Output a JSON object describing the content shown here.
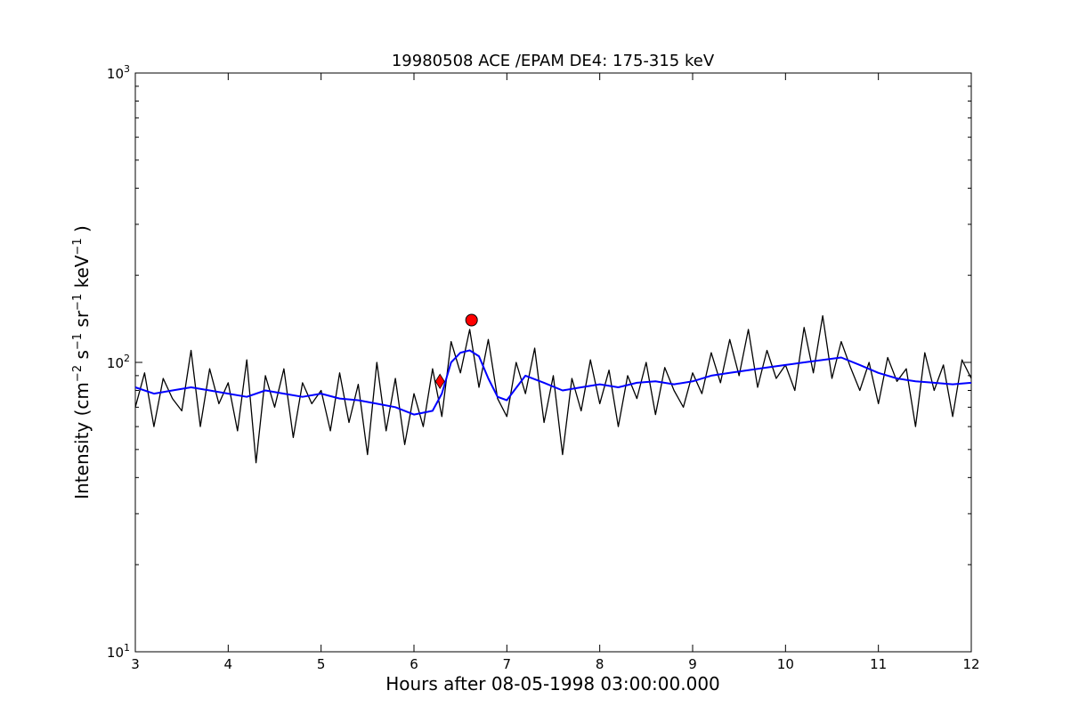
{
  "chart_data": {
    "type": "line",
    "title": "19980508 ACE /EPAM DE4: 175-315 keV",
    "xlabel": "Hours after 08-05-1998 03:00:00.000",
    "ylabel_parts": [
      "Intensity (cm",
      "−2",
      " s",
      "−1",
      " sr",
      "−1",
      " keV",
      "−1",
      " )"
    ],
    "xlim": [
      3,
      12
    ],
    "ylim": [
      10,
      1000
    ],
    "yscale": "log",
    "x_ticks": [
      "3",
      "4",
      "5",
      "6",
      "7",
      "8",
      "9",
      "10",
      "11",
      "12"
    ],
    "y_ticks": [
      {
        "value": 10,
        "base": "10",
        "exp": "1"
      },
      {
        "value": 100,
        "base": "10",
        "exp": "2"
      },
      {
        "value": 1000,
        "base": "10",
        "exp": "3"
      }
    ],
    "grid": false,
    "series": [
      {
        "color": "#000000",
        "style": "raw",
        "x": [
          3.0,
          3.1,
          3.2,
          3.3,
          3.4,
          3.5,
          3.6,
          3.7,
          3.8,
          3.9,
          4.0,
          4.1,
          4.2,
          4.3,
          4.4,
          4.5,
          4.6,
          4.7,
          4.8,
          4.9,
          5.0,
          5.1,
          5.2,
          5.3,
          5.4,
          5.5,
          5.6,
          5.7,
          5.8,
          5.9,
          6.0,
          6.1,
          6.2,
          6.3,
          6.4,
          6.5,
          6.6,
          6.7,
          6.8,
          6.9,
          7.0,
          7.1,
          7.2,
          7.3,
          7.4,
          7.5,
          7.6,
          7.7,
          7.8,
          7.9,
          8.0,
          8.1,
          8.2,
          8.3,
          8.4,
          8.5,
          8.6,
          8.7,
          8.8,
          8.9,
          9.0,
          9.1,
          9.2,
          9.3,
          9.4,
          9.5,
          9.6,
          9.7,
          9.8,
          9.9,
          10.0,
          10.1,
          10.2,
          10.3,
          10.4,
          10.5,
          10.6,
          10.7,
          10.8,
          10.9,
          11.0,
          11.1,
          11.2,
          11.3,
          11.4,
          11.5,
          11.6,
          11.7,
          11.8,
          11.9,
          12.0
        ],
        "values": [
          70,
          92,
          60,
          88,
          75,
          68,
          110,
          60,
          95,
          72,
          85,
          58,
          102,
          45,
          90,
          70,
          95,
          55,
          85,
          72,
          80,
          58,
          92,
          62,
          84,
          48,
          100,
          58,
          88,
          52,
          78,
          60,
          95,
          65,
          118,
          92,
          130,
          82,
          120,
          75,
          65,
          100,
          78,
          112,
          62,
          90,
          48,
          88,
          68,
          102,
          72,
          94,
          60,
          90,
          75,
          100,
          66,
          96,
          80,
          70,
          92,
          78,
          108,
          85,
          120,
          90,
          130,
          82,
          110,
          88,
          98,
          80,
          132,
          92,
          145,
          88,
          118,
          96,
          80,
          100,
          72,
          104,
          86,
          95,
          60,
          108,
          80,
          98,
          65,
          102,
          88
        ]
      },
      {
        "color": "#0000ff",
        "style": "smoothed",
        "x": [
          3.0,
          3.2,
          3.4,
          3.6,
          3.8,
          4.0,
          4.2,
          4.4,
          4.6,
          4.8,
          5.0,
          5.2,
          5.4,
          5.6,
          5.8,
          6.0,
          6.2,
          6.3,
          6.4,
          6.5,
          6.6,
          6.7,
          6.8,
          6.9,
          7.0,
          7.2,
          7.4,
          7.6,
          7.8,
          8.0,
          8.2,
          8.4,
          8.6,
          8.8,
          9.0,
          9.2,
          9.4,
          9.6,
          9.8,
          10.0,
          10.2,
          10.4,
          10.6,
          10.8,
          11.0,
          11.2,
          11.4,
          11.6,
          11.8,
          12.0
        ],
        "values": [
          82,
          78,
          80,
          82,
          80,
          78,
          76,
          80,
          78,
          76,
          78,
          75,
          74,
          72,
          70,
          66,
          68,
          78,
          100,
          108,
          110,
          105,
          88,
          76,
          74,
          90,
          85,
          80,
          82,
          84,
          82,
          85,
          86,
          84,
          86,
          90,
          92,
          94,
          96,
          98,
          100,
          102,
          104,
          98,
          92,
          88,
          86,
          85,
          84,
          85
        ]
      }
    ],
    "markers": [
      {
        "shape": "diamond",
        "x": 6.28,
        "y": 86,
        "color": "#ff0000"
      },
      {
        "shape": "circle",
        "x": 6.62,
        "y": 140,
        "color": "#ff0000"
      }
    ]
  }
}
